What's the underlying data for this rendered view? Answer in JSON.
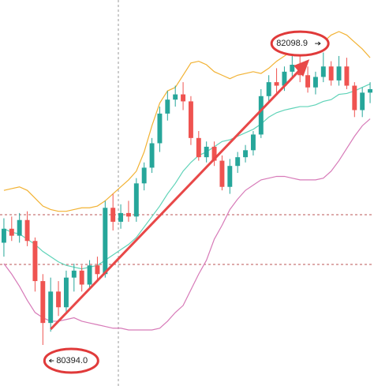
{
  "chart_data": {
    "type": "candlestick",
    "up_color": "#26a69a",
    "down_color": "#ef5350",
    "open": [
      80980,
      81060,
      81020,
      81110,
      80990,
      80760,
      80520,
      80700,
      80610,
      80780,
      80820,
      80740,
      80850,
      80800,
      81180,
      81100,
      81150,
      81130,
      81320,
      81410,
      81550,
      81720,
      81800,
      81830,
      81790,
      81580,
      81470,
      81530,
      81450,
      81300,
      81420,
      81470,
      81510,
      81600,
      81820,
      81900,
      81880,
      81960,
      82000,
      81940,
      81870,
      81930,
      81990,
      81910,
      81990,
      81880,
      81740,
      81840
    ],
    "high": [
      81120,
      81130,
      81150,
      81160,
      81010,
      80800,
      80780,
      80760,
      80820,
      80860,
      80850,
      80880,
      80900,
      81220,
      81260,
      81200,
      81220,
      81350,
      81440,
      81580,
      81760,
      81850,
      81880,
      81900,
      81820,
      81620,
      81560,
      81560,
      81480,
      81460,
      81500,
      81540,
      81620,
      81860,
      81940,
      81980,
      81990,
      82050,
      82098.9,
      81990,
      81960,
      82070,
      82020,
      82050,
      82040,
      81900,
      81870,
      81900
    ],
    "low": [
      80900,
      80990,
      80980,
      80960,
      80700,
      80394,
      80470,
      80560,
      80580,
      80700,
      80700,
      80720,
      80760,
      80780,
      81050,
      81060,
      81100,
      81100,
      81280,
      81380,
      81500,
      81680,
      81760,
      81740,
      81540,
      81450,
      81440,
      81420,
      81280,
      81260,
      81380,
      81440,
      81480,
      81580,
      81780,
      81840,
      81850,
      81930,
      81900,
      81840,
      81830,
      81900,
      81880,
      81880,
      81860,
      81700,
      81700,
      81780
    ],
    "close": [
      81060,
      81020,
      81110,
      80990,
      80760,
      80520,
      80700,
      80610,
      80780,
      80820,
      80740,
      80850,
      80800,
      81180,
      81100,
      81150,
      81130,
      81320,
      81410,
      81550,
      81720,
      81800,
      81830,
      81790,
      81580,
      81470,
      81530,
      81450,
      81300,
      81420,
      81470,
      81510,
      81600,
      81820,
      81900,
      81880,
      81960,
      82000,
      81940,
      81870,
      81930,
      81990,
      81910,
      81990,
      81880,
      81740,
      81840,
      81860
    ],
    "bands": [
      {
        "color": "#f2b233",
        "values": [
          81280,
          81290,
          81300,
          81280,
          81235,
          81190,
          81170,
          81160,
          81160,
          81170,
          81180,
          81180,
          81190,
          81220,
          81260,
          81300,
          81340,
          81390,
          81500,
          81650,
          81780,
          81850,
          81870,
          81940,
          82010,
          82020,
          82000,
          81960,
          81940,
          81920,
          81940,
          81950,
          81960,
          81950,
          81980,
          82020,
          82050,
          82080,
          82100,
          82110,
          82110,
          82130,
          82170,
          82190,
          82170,
          82130,
          82090,
          82040
        ]
      },
      {
        "color": "#5fd3b8",
        "values": [
          81060,
          81040,
          81030,
          81000,
          80970,
          80930,
          80900,
          80870,
          80850,
          80840,
          80830,
          80840,
          80850,
          80880,
          80910,
          80940,
          80970,
          81010,
          81070,
          81130,
          81190,
          81260,
          81320,
          81390,
          81440,
          81480,
          81500,
          81530,
          81560,
          81570,
          81590,
          81610,
          81630,
          81660,
          81700,
          81725,
          81740,
          81750,
          81760,
          81760,
          81770,
          81790,
          81800,
          81830,
          81835,
          81850,
          81870,
          81890
        ]
      },
      {
        "color": "#d77ab8",
        "values": [
          80860,
          80800,
          80730,
          80650,
          80580,
          80550,
          80530,
          80530,
          80540,
          80550,
          80530,
          80520,
          80510,
          80500,
          80490,
          80490,
          80480,
          80480,
          80480,
          80480,
          80490,
          80530,
          80580,
          80620,
          80710,
          80800,
          80880,
          81000,
          81080,
          81170,
          81230,
          81280,
          81310,
          81340,
          81350,
          81360,
          81360,
          81350,
          81340,
          81340,
          81340,
          81350,
          81390,
          81450,
          81520,
          81590,
          81650,
          81690
        ]
      }
    ],
    "high_label": "82098.9",
    "low_label": "80394.0"
  }
}
